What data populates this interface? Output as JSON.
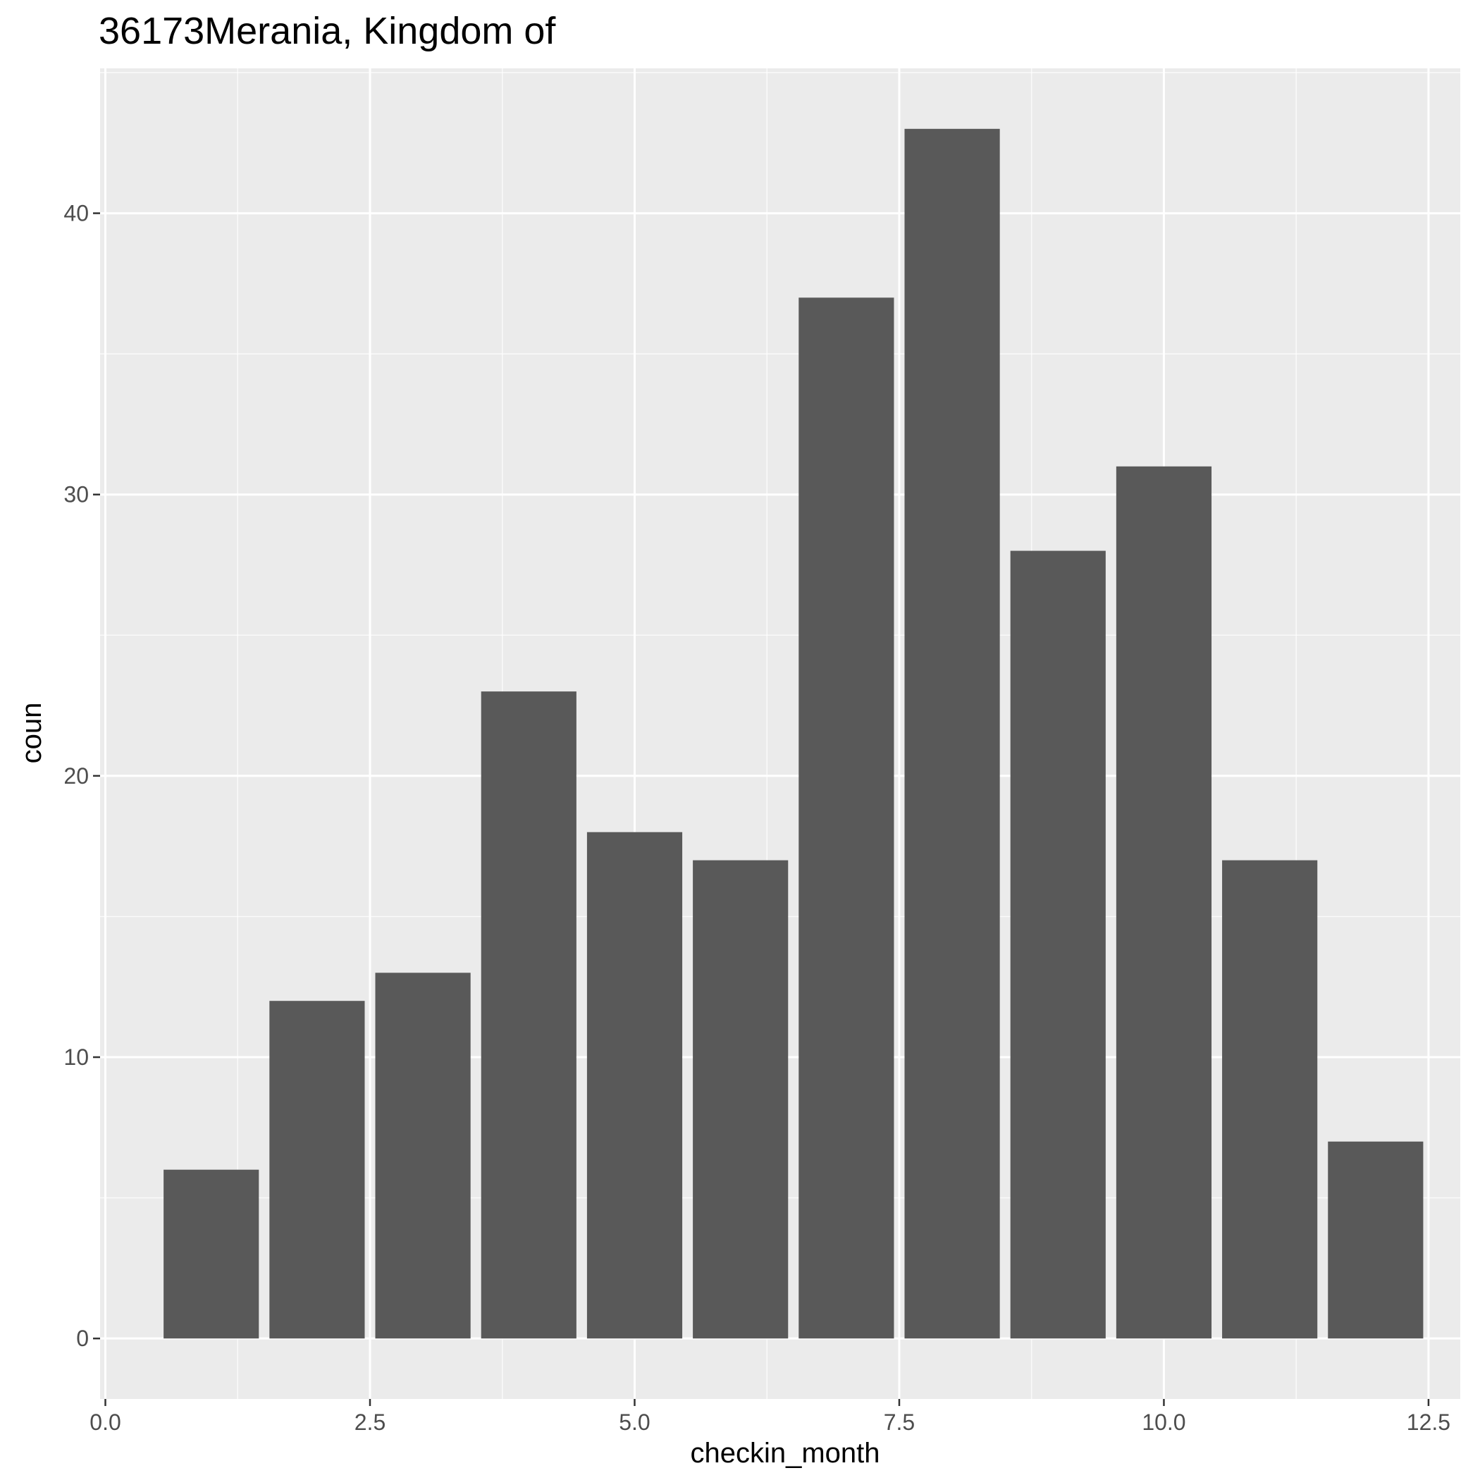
{
  "chart_data": {
    "type": "bar",
    "title": "36173Merania, Kingdom of",
    "xlabel": "checkin_month",
    "ylabel": "coun",
    "x": [
      1,
      2,
      3,
      4,
      5,
      6,
      7,
      8,
      9,
      10,
      11,
      12
    ],
    "values": [
      6,
      12,
      13,
      23,
      18,
      17,
      37,
      43,
      28,
      31,
      17,
      7
    ],
    "xlim": [
      -0.05,
      12.8
    ],
    "ylim": [
      -2.15,
      45.15
    ],
    "x_ticks": [
      {
        "value": 0,
        "label": "0.0"
      },
      {
        "value": 2.5,
        "label": "2.5"
      },
      {
        "value": 5,
        "label": "5.0"
      },
      {
        "value": 7.5,
        "label": "7.5"
      },
      {
        "value": 10,
        "label": "10.0"
      },
      {
        "value": 12.5,
        "label": "12.5"
      }
    ],
    "y_ticks": [
      {
        "value": 0,
        "label": "0"
      },
      {
        "value": 10,
        "label": "10"
      },
      {
        "value": 20,
        "label": "20"
      },
      {
        "value": 30,
        "label": "30"
      },
      {
        "value": 40,
        "label": "40"
      }
    ],
    "grid": true,
    "legend": "none",
    "colors": {
      "bar": "#595959",
      "panel_background": "#ebebeb",
      "grid": "#ffffff",
      "tick_text": "#4d4d4d",
      "tick_mark": "#333333"
    }
  }
}
